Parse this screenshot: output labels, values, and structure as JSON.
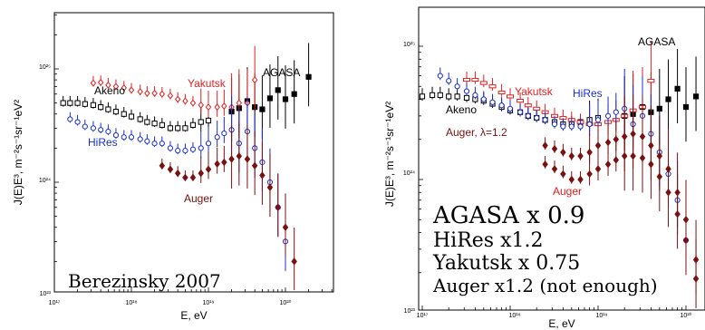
{
  "colors": {
    "AGASA": "#000000",
    "Akeno": "#000000",
    "Yakutsk": "#e02020",
    "HiRes": "#1a2fd0",
    "Auger": "#7a1010"
  },
  "chart_data": [
    {
      "type": "scatter",
      "xlabel": "E, eV",
      "ylabel": "J(E)E³, m⁻²s⁻¹sr⁻¹eV²",
      "xscale": "log",
      "yscale": "log",
      "xlim": [
        1e+17,
        5e+20
      ],
      "ylim": [
        1e+23,
        3e+25
      ],
      "x_ticks": [
        "10¹⁷",
        "10¹⁸",
        "10¹⁹",
        "10²⁰"
      ],
      "y_ticks": [
        "10²³",
        "10²⁴",
        "10²⁵"
      ],
      "annotation": "Berezinsky 2007",
      "series": [
        {
          "name": "AGASA",
          "marker": "square-filled",
          "x": [
            2e+19,
            2.5e+19,
            3.2e+19,
            4e+19,
            5e+19,
            6.3e+19,
            8e+19,
            1e+20,
            1.3e+20,
            2e+20
          ],
          "y": [
            4.2e+24,
            4.5e+24,
            5.2e+24,
            4.6e+24,
            4.4e+24,
            5.5e+24,
            6.5e+24,
            5.4e+24,
            6e+24,
            8.5e+24
          ]
        },
        {
          "name": "Akeno",
          "marker": "square-open",
          "x": [
            1e+17,
            1.3e+17,
            1.6e+17,
            2e+17,
            2.5e+17,
            3.2e+17,
            4e+17,
            5e+17,
            6.3e+17,
            8e+17,
            1e+18,
            1.3e+18,
            1.6e+18,
            2e+18,
            2.5e+18,
            3.2e+18,
            4e+18,
            5e+18,
            6.3e+18,
            8e+18,
            1e+19
          ],
          "y": [
            4.9e+24,
            5e+24,
            5e+24,
            5e+24,
            4.9e+24,
            4.8e+24,
            4.6e+24,
            4.4e+24,
            4.2e+24,
            4e+24,
            3.8e+24,
            3.6e+24,
            3.4e+24,
            3.3e+24,
            3.2e+24,
            3e+24,
            3e+24,
            3e+24,
            3.2e+24,
            3.4e+24,
            3.5e+24
          ]
        },
        {
          "name": "Yakutsk",
          "marker": "diamond-open",
          "x": [
            3.2e+17,
            4e+17,
            5e+17,
            6.3e+17,
            8e+17,
            1e+18,
            1.3e+18,
            1.6e+18,
            2e+18,
            2.5e+18,
            3.2e+18,
            4e+18,
            5e+18,
            6.3e+18,
            8e+18,
            1e+19,
            1.3e+19,
            1.6e+19,
            2e+19,
            2.5e+19,
            3.2e+19,
            4e+19
          ],
          "y": [
            7.5e+24,
            7.6e+24,
            7.2e+24,
            7e+24,
            6.8e+24,
            6.5e+24,
            6.3e+24,
            6.1e+24,
            6.1e+24,
            6e+24,
            5.8e+24,
            5.4e+24,
            5.2e+24,
            5e+24,
            4.8e+24,
            4.6e+24,
            4.6e+24,
            4.7e+24,
            4.6e+24,
            5e+24,
            5e+24,
            8e+24
          ]
        },
        {
          "name": "HiRes",
          "marker": "circle-open",
          "x": [
            1.6e+17,
            2e+17,
            2.5e+17,
            3.2e+17,
            4e+17,
            5e+17,
            6.3e+17,
            8e+17,
            1e+18,
            1.3e+18,
            1.6e+18,
            2e+18,
            2.5e+18,
            3.2e+18,
            4e+18,
            5e+18,
            6.3e+18,
            8e+18,
            1e+19,
            1.3e+19,
            1.6e+19,
            2e+19,
            2.5e+19,
            3.2e+19,
            4e+19,
            5e+19,
            6.3e+19,
            8e+19,
            1e+20
          ],
          "y": [
            3.6e+24,
            3.4e+24,
            3.1e+24,
            3e+24,
            2.9e+24,
            2.8e+24,
            2.6e+24,
            2.5e+24,
            2.5e+24,
            2.4e+24,
            2.3e+24,
            2.2e+24,
            2.2e+24,
            2e+24,
            1.9e+24,
            1.9e+24,
            1.95e+24,
            2e+24,
            2.2e+24,
            2.5e+24,
            2.7e+24,
            2.9e+24,
            2.2e+24,
            2.8e+24,
            2e+24,
            1.5e+24,
            1e+24,
            6e+23,
            3e+23
          ]
        },
        {
          "name": "Auger",
          "marker": "diamond-filled",
          "x": [
            2.5e+18,
            3.2e+18,
            4e+18,
            5e+18,
            6.3e+18,
            8e+18,
            1e+19,
            1.3e+19,
            1.6e+19,
            2e+19,
            2.5e+19,
            3.2e+19,
            4e+19,
            5e+19,
            6.3e+19,
            8e+19,
            1e+20,
            1.3e+20
          ],
          "y": [
            1.4e+24,
            1.3e+24,
            1.2e+24,
            1.1e+24,
            1.1e+24,
            1.2e+24,
            1.3e+24,
            1.45e+24,
            1.5e+24,
            1.6e+24,
            1.7e+24,
            1.6e+24,
            1.4e+24,
            1.15e+24,
            9e+23,
            6e+23,
            4e+23,
            2e+23
          ]
        }
      ]
    },
    {
      "type": "scatter",
      "xlabel": "E, eV",
      "ylabel": "J(E)E³, m⁻²s⁻¹sr⁻¹eV²",
      "xscale": "log",
      "yscale": "log",
      "xlim": [
        1e+17,
        5e+20
      ],
      "ylim": [
        1e+23,
        2e+25
      ],
      "x_ticks": [
        "10¹⁷",
        "10¹⁸",
        "10¹⁹",
        "10²⁰"
      ],
      "y_ticks": [
        "10²³",
        "10²⁴",
        "10²⁵"
      ],
      "annotation_lines": [
        "AGASA x 0.9",
        "HiRes x1.2",
        "Yakutsk x 0.75",
        "Auger x1.2 (not enough)"
      ],
      "series": [
        {
          "name": "AGASA",
          "marker": "square-filled",
          "x": [
            2e+19,
            2.5e+19,
            3.2e+19,
            4e+19,
            5e+19,
            6.3e+19,
            8e+19,
            1e+20,
            1.3e+20,
            2e+20
          ],
          "y": [
            3e+24,
            3.1e+24,
            3.5e+24,
            3.2e+24,
            3.4e+24,
            4e+24,
            4.8e+24,
            3.5e+24,
            4.2e+24,
            6e+24
          ]
        },
        {
          "name": "Akeno",
          "marker": "square-open",
          "x": [
            1e+17,
            1.3e+17,
            1.6e+17,
            2e+17,
            2.5e+17,
            3.2e+17,
            4e+17,
            5e+17,
            6.3e+17,
            8e+17,
            1e+18,
            1.3e+18,
            1.6e+18,
            2e+18,
            2.5e+18,
            3.2e+18,
            4e+18,
            5e+18,
            6.3e+18,
            8e+18,
            1e+19
          ],
          "y": [
            4.2e+24,
            4.3e+24,
            4.3e+24,
            4.2e+24,
            4.2e+24,
            4.1e+24,
            4e+24,
            3.9e+24,
            3.7e+24,
            3.5e+24,
            3.3e+24,
            3.2e+24,
            3e+24,
            2.9e+24,
            2.8e+24,
            2.7e+24,
            2.6e+24,
            2.6e+24,
            2.7e+24,
            2.8e+24,
            2.9e+24
          ]
        },
        {
          "name": "Yakutsk",
          "marker": "bar-open",
          "x": [
            3.2e+17,
            4e+17,
            5e+17,
            6.3e+17,
            8e+17,
            1e+18,
            1.3e+18,
            1.6e+18,
            2e+18,
            2.5e+18,
            3.2e+18,
            4e+18,
            5e+18,
            6.3e+18,
            8e+18,
            1e+19,
            1.3e+19,
            1.6e+19,
            2e+19,
            2.5e+19,
            3.2e+19,
            4e+19
          ],
          "y": [
            5.6e+24,
            5.6e+24,
            5.3e+24,
            5e+24,
            4.5e+24,
            4.2e+24,
            3.9e+24,
            3.6e+24,
            3.4e+24,
            3.2e+24,
            3e+24,
            2.9e+24,
            2.8e+24,
            2.7e+24,
            2.6e+24,
            2.6e+24,
            2.7e+24,
            2.8e+24,
            3e+24,
            3.3e+24,
            3.5e+24,
            5.5e+24
          ]
        },
        {
          "name": "HiRes",
          "marker": "circle-open",
          "x": [
            1.6e+17,
            2e+17,
            2.5e+17,
            3.2e+17,
            4e+17,
            5e+17,
            6.3e+17,
            8e+17,
            1e+18,
            1.3e+18,
            1.6e+18,
            2e+18,
            2.5e+18,
            3.2e+18,
            4e+18,
            5e+18,
            6.3e+18,
            8e+18,
            1e+19,
            1.3e+19,
            1.6e+19,
            2e+19,
            2.5e+19,
            3.2e+19,
            4e+19,
            5e+19,
            6.3e+19,
            8e+19,
            1e+20
          ],
          "y": [
            6e+24,
            5.5e+24,
            5e+24,
            4.6e+24,
            4.3e+24,
            4e+24,
            3.8e+24,
            3.6e+24,
            3.4e+24,
            3.2e+24,
            3e+24,
            2.9e+24,
            2.8e+24,
            2.6e+24,
            2.5e+24,
            2.5e+24,
            2.5e+24,
            2.6e+24,
            2.8e+24,
            3e+24,
            3.2e+24,
            3.4e+24,
            2.6e+24,
            3e+24,
            2.2e+24,
            1.6e+24,
            1.1e+24,
            7e+23,
            3.5e+23
          ]
        },
        {
          "name": "Auger, λ=1.2",
          "marker": "diamond-filled",
          "x": [
            2.5e+18,
            3.2e+18,
            4e+18,
            5e+18,
            6.3e+18,
            8e+18,
            1e+19,
            1.3e+19,
            1.6e+19,
            2e+19,
            2.5e+19,
            3.2e+19,
            4e+19,
            5e+19,
            6.3e+19,
            8e+19,
            1e+20,
            1.3e+20
          ],
          "y": [
            1.8e+24,
            1.7e+24,
            1.6e+24,
            1.5e+24,
            1.5e+24,
            1.6e+24,
            1.8e+24,
            1.9e+24,
            2e+24,
            2.1e+24,
            2.2e+24,
            2.1e+24,
            1.8e+24,
            1.5e+24,
            1.2e+24,
            8e+23,
            5e+23,
            2.5e+23
          ]
        },
        {
          "name": "Auger",
          "marker": "diamond-filled",
          "x": [
            2.5e+18,
            3.2e+18,
            4e+18,
            5e+18,
            6.3e+18,
            8e+18,
            1e+19,
            1.3e+19,
            1.6e+19,
            2e+19,
            2.5e+19,
            3.2e+19,
            4e+19,
            5e+19,
            6.3e+19,
            8e+19,
            1e+20,
            1.3e+20
          ],
          "y": [
            1.3e+24,
            1.2e+24,
            1.1e+24,
            1e+24,
            1e+24,
            1.1e+24,
            1.2e+24,
            1.3e+24,
            1.4e+24,
            1.5e+24,
            1.5e+24,
            1.45e+24,
            1.3e+24,
            1.05e+24,
            8e+23,
            5.5e+23,
            3.5e+23,
            1.8e+23
          ]
        }
      ]
    }
  ]
}
